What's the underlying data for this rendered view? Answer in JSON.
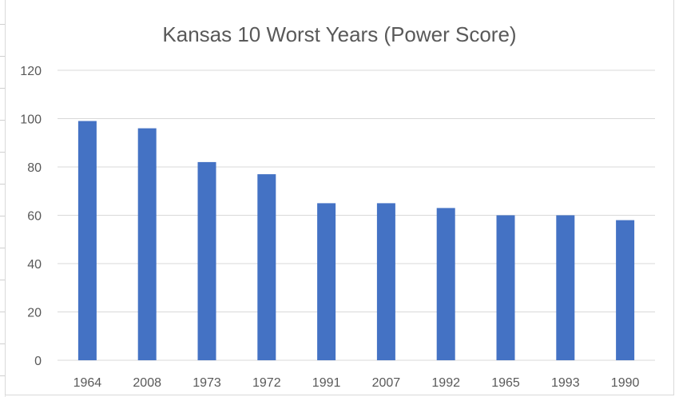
{
  "chart_data": {
    "type": "bar",
    "title": "Kansas 10 Worst Years (Power Score)",
    "xlabel": "",
    "ylabel": "",
    "categories": [
      "1964",
      "2008",
      "1973",
      "1972",
      "1991",
      "2007",
      "1992",
      "1965",
      "1993",
      "1990"
    ],
    "values": [
      99,
      96,
      82,
      77,
      65,
      65,
      63,
      60,
      60,
      58
    ],
    "ylim": [
      0,
      120
    ],
    "yticks": [
      "0",
      "20",
      "40",
      "60",
      "80",
      "100",
      "120"
    ],
    "grid": true,
    "legend": "none",
    "colors": {
      "bar": "#4472C4",
      "grid": "#d9d9d9",
      "text": "#595959"
    }
  }
}
